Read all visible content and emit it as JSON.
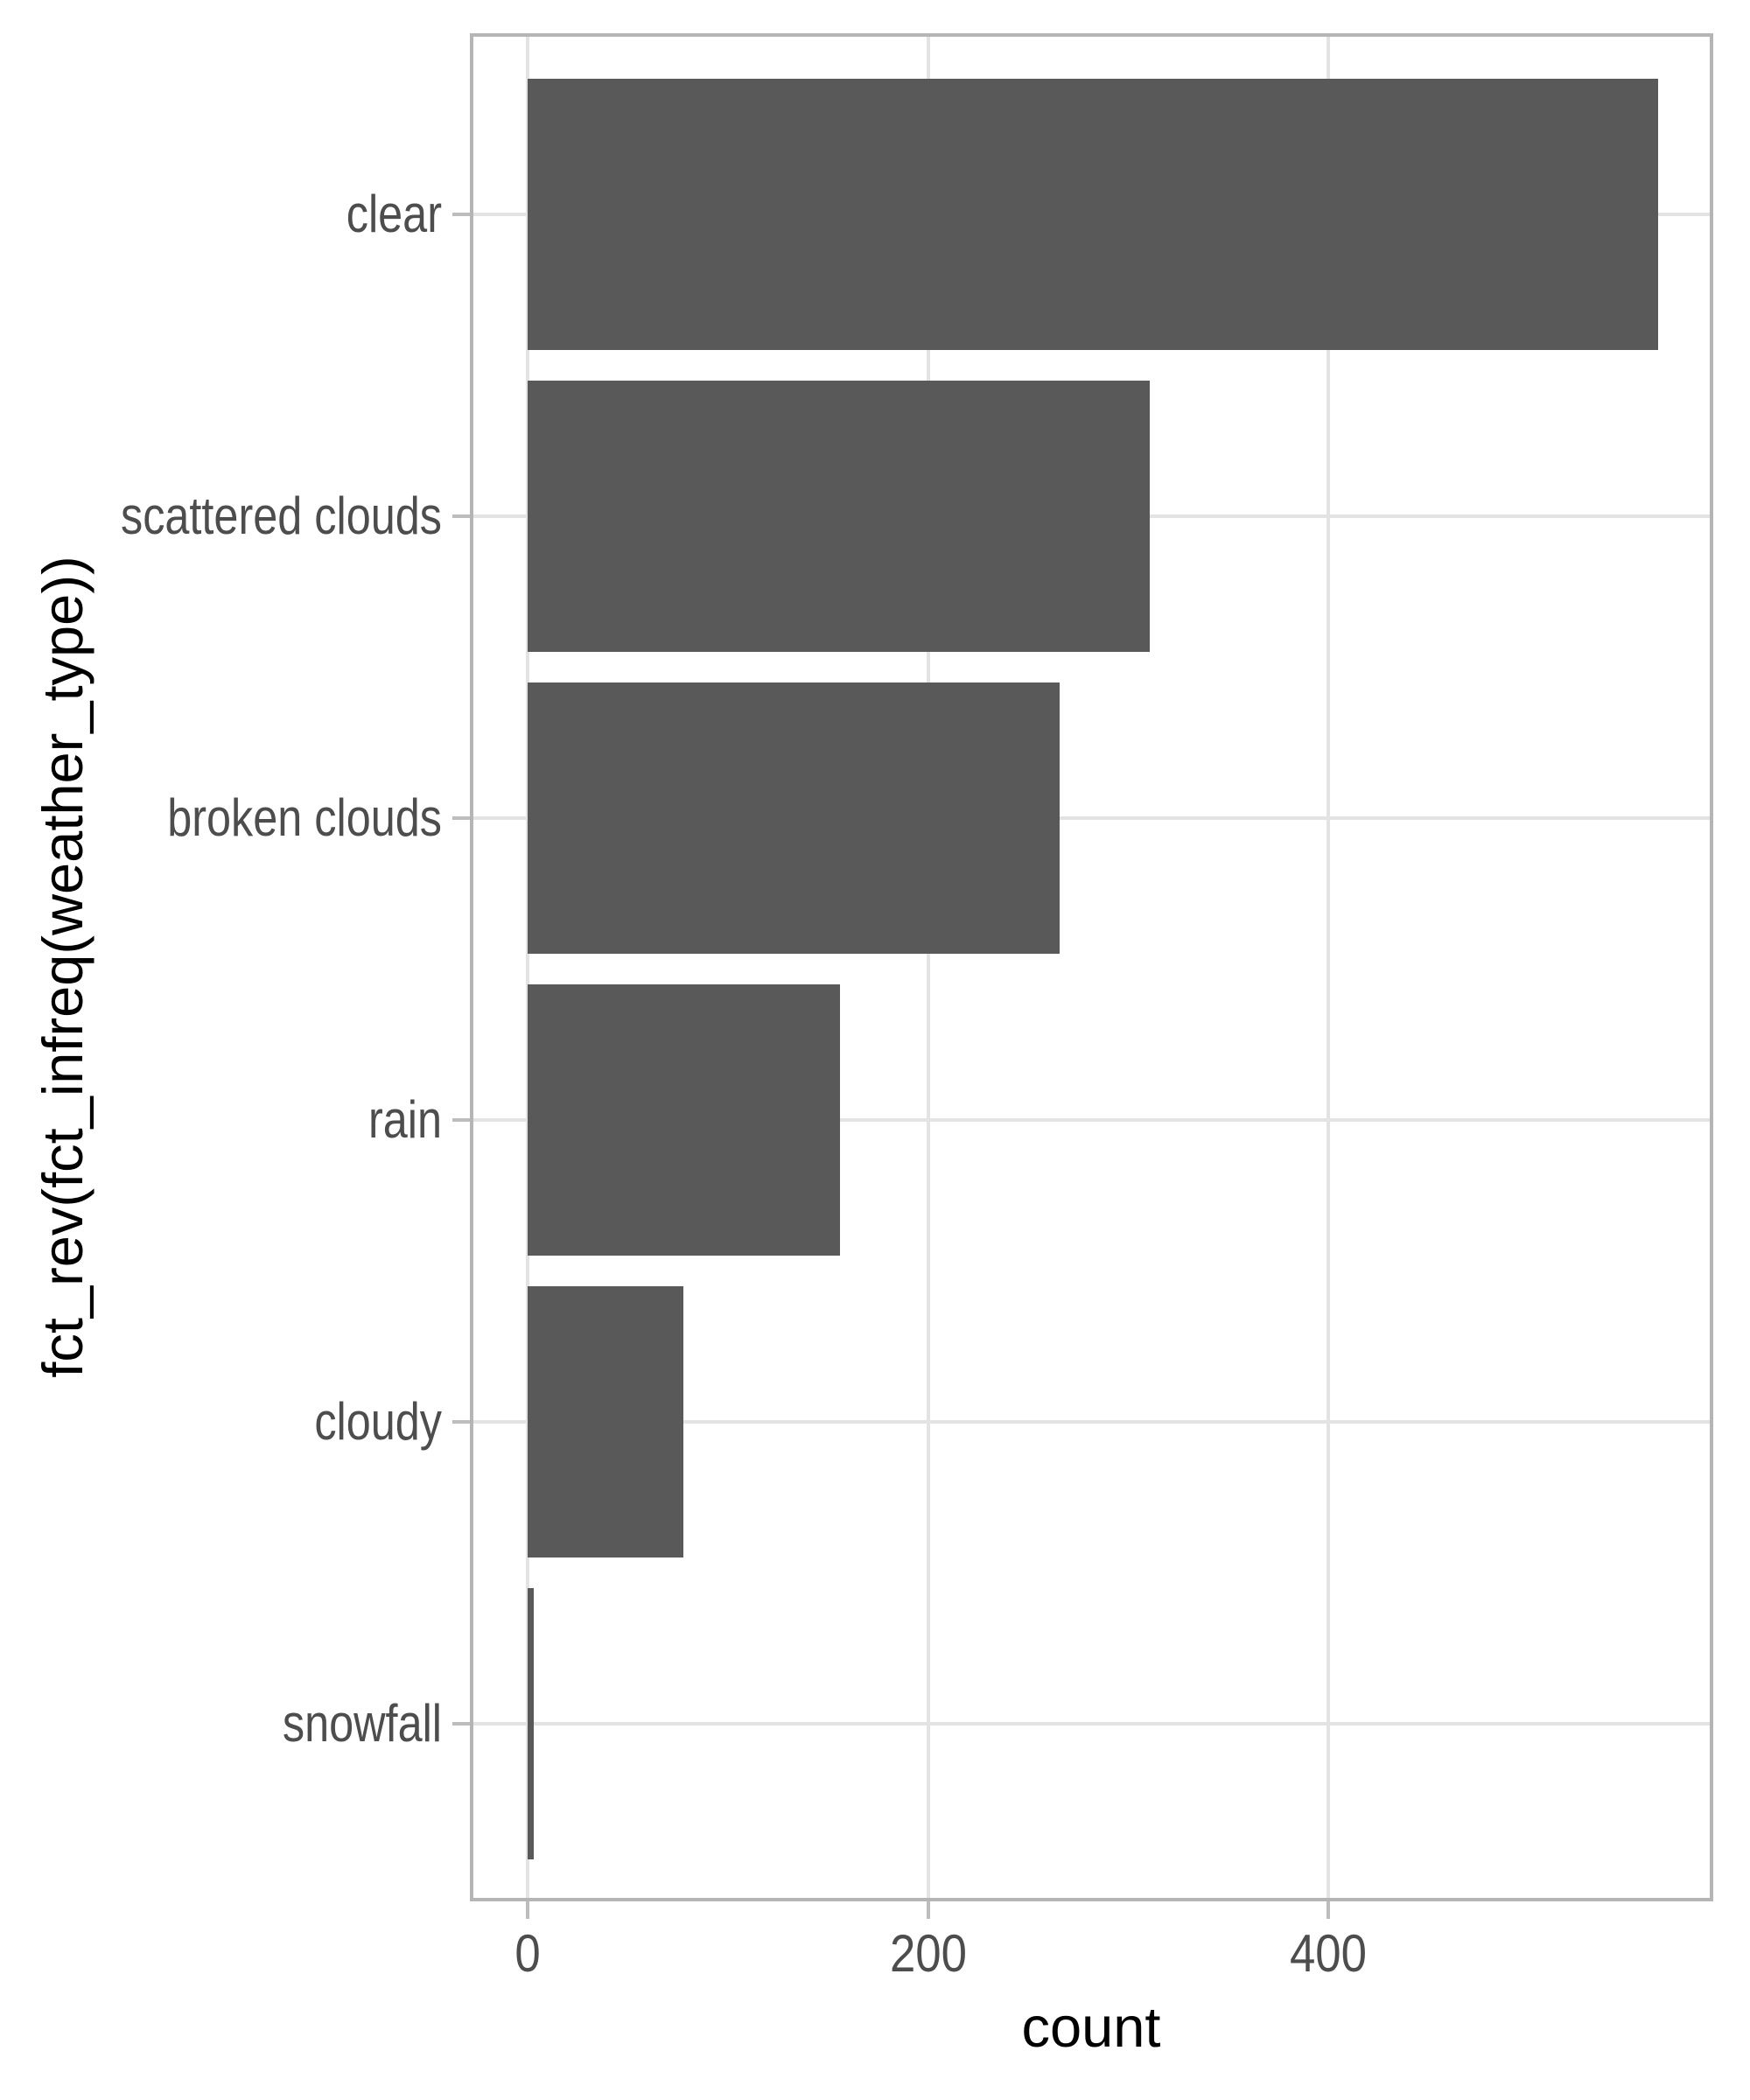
{
  "chart_data": {
    "type": "bar",
    "orientation": "horizontal",
    "title": "",
    "xlabel": "count",
    "ylabel": "fct_rev(fct_infreq(weather_type))",
    "categories": [
      "clear",
      "scattered clouds",
      "broken clouds",
      "rain",
      "cloudy",
      "snowfall"
    ],
    "values": [
      565,
      311,
      266,
      156,
      78,
      3
    ],
    "x_ticks": [
      0,
      200,
      400
    ],
    "xlim": [
      -28,
      593
    ],
    "grid": "major_only",
    "legend": "none",
    "colors": {
      "bar_fill": "#595959",
      "panel_border": "#b5b5b5",
      "gridline": "#e3e3e3",
      "tick_mark": "#bdbdbd",
      "tick_label": "#4d4d4d",
      "axis_title": "#000000",
      "background": "#ffffff"
    }
  }
}
